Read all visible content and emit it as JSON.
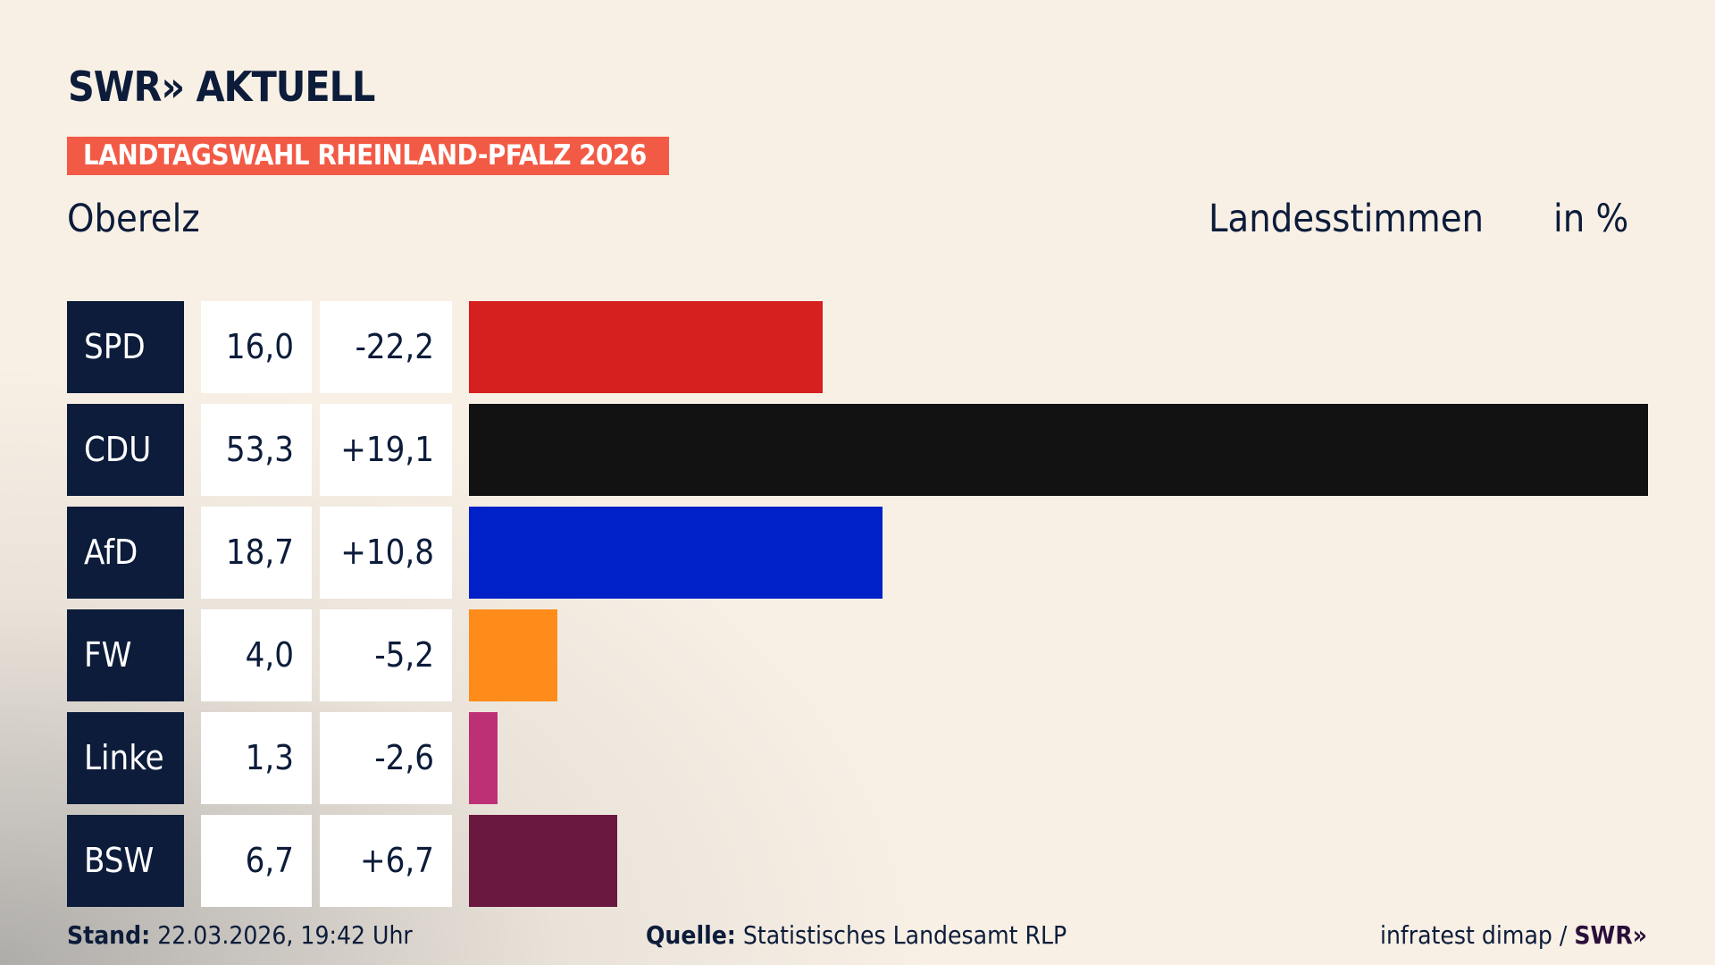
{
  "header": {
    "logo": "SWR» AKTUELL",
    "banner": "LANDTAGSWAHL RHEINLAND-PFALZ 2026",
    "place": "Oberelz",
    "measure": "Landesstimmen",
    "unit": "in %"
  },
  "chart_data": {
    "type": "bar",
    "orientation": "horizontal",
    "categories": [
      "SPD",
      "CDU",
      "AfD",
      "FW",
      "Linke",
      "BSW"
    ],
    "values": [
      16.0,
      53.3,
      18.7,
      4.0,
      1.3,
      6.7
    ],
    "value_labels": [
      "16,0",
      "53,3",
      "18,7",
      "4,0",
      "1,3",
      "6,7"
    ],
    "change_labels": [
      "-22,2",
      "+19,1",
      "+10,8",
      "-5,2",
      "-2,6",
      "+6,7"
    ],
    "changes": [
      -22.2,
      19.1,
      10.8,
      -5.2,
      -2.6,
      6.7
    ],
    "colors": [
      "#d61f1f",
      "#121212",
      "#0021c7",
      "#ff8c1a",
      "#be3075",
      "#6a1840"
    ],
    "xlim": [
      0,
      53.3
    ],
    "grid": false
  },
  "footer": {
    "stand_label": "Stand:",
    "stand_value": "22.03.2026, 19:42 Uhr",
    "source_label": "Quelle:",
    "source_value": "Statistisches Landesamt RLP",
    "credit": "infratest dimap /",
    "credit_logo": "SWR»"
  },
  "colors": {
    "navy": "#0c1c3a",
    "banner": "#f25a45",
    "background": "#f8f0e5"
  }
}
